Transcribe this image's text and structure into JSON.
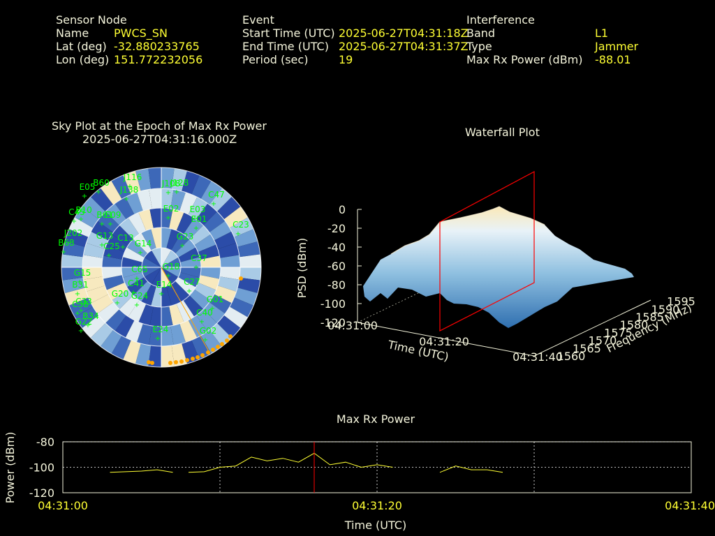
{
  "header": {
    "sensor": {
      "title": "Sensor Node",
      "name_label": "Name",
      "name": "PWCS_SN",
      "lat_label": "Lat (deg)",
      "lat": "-32.880233765",
      "lon_label": "Lon (deg)",
      "lon": "151.772232056"
    },
    "event": {
      "title": "Event",
      "start_label": "Start Time (UTC)",
      "start": "2025-06-27T04:31:18Z",
      "end_label": "End Time (UTC)",
      "end": "2025-06-27T04:31:37Z",
      "period_label": "Period (sec)",
      "period": "19"
    },
    "interference": {
      "title": "Interference",
      "band_label": "Band",
      "band": "L1",
      "type_label": "Type",
      "type": "Jammer",
      "maxrx_label": "Max Rx Power (dBm)",
      "maxrx": "-88.01"
    }
  },
  "sky_plot": {
    "title_line1": "Sky Plot at the Epoch of Max Rx Power",
    "title_line2": "2025-06-27T04:31:16.000Z",
    "satellites": [
      "E05",
      "B60",
      "J116",
      "J108",
      "J138",
      "J128",
      "C47",
      "B10",
      "E03",
      "C23",
      "B61",
      "E09",
      "C45",
      "G13",
      "E01",
      "C13",
      "J202",
      "B63",
      "C25",
      "G14",
      "E02",
      "G23",
      "C65",
      "C37",
      "G18",
      "G15",
      "C41",
      "E14",
      "C27",
      "B31",
      "C33",
      "C38",
      "B34",
      "G01",
      "G20",
      "C40",
      "G24",
      "G22",
      "E24",
      "G02"
    ]
  },
  "waterfall": {
    "title": "Waterfall Plot",
    "zlabel": "PSD (dBm)",
    "xlabel": "Time (UTC)",
    "ylabel": "Frequency (MHz)",
    "ztick_labels": [
      "0",
      "-20",
      "-40",
      "-60",
      "-80",
      "-100",
      "-120"
    ],
    "xtick_labels": [
      "04:31:00",
      "04:31:20",
      "04:31:40"
    ],
    "ytick_labels": [
      "1560",
      "1565",
      "1570",
      "1575",
      "1580",
      "1585",
      "1590",
      "1595"
    ]
  },
  "colors": {
    "text": "#f5f5dc",
    "value": "#ffff33",
    "satellite": "#00ff00",
    "marker": "#ff0000",
    "interferer": "#ffa500",
    "line": "#ffff33"
  },
  "chart_data": {
    "type": "line",
    "title": "Max Rx Power",
    "xlabel": "Time (UTC)",
    "ylabel": "Power (dBm)",
    "xtick_labels": [
      "04:31:00",
      "04:31:20",
      "04:31:40"
    ],
    "ytick_labels": [
      "-80",
      "-100",
      "-120"
    ],
    "xlim_sec": [
      0,
      40
    ],
    "ylim": [
      -120,
      -80
    ],
    "grid": true,
    "marker_time_sec": 16,
    "segments": [
      {
        "x": [
          3,
          5,
          6,
          7
        ],
        "y": [
          -104,
          -103,
          -102,
          -104
        ]
      },
      {
        "x": [
          8,
          9,
          10,
          11,
          12,
          13,
          14,
          15,
          16,
          17,
          18,
          19,
          20,
          21
        ],
        "y": [
          -104,
          -103.5,
          -100,
          -99,
          -92,
          -95,
          -93,
          -96,
          -89,
          -98,
          -96,
          -100,
          -98,
          -100
        ]
      },
      {
        "x": [
          24,
          25,
          26,
          27,
          28
        ],
        "y": [
          -104,
          -99,
          -102,
          -102,
          -104
        ]
      }
    ]
  }
}
